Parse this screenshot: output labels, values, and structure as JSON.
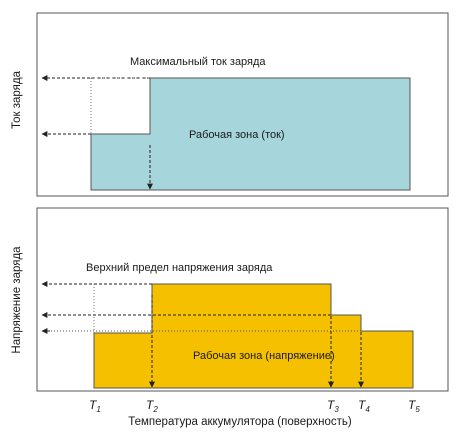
{
  "top_panel": {
    "y_axis_label": "Ток заряда",
    "max_label": "Максимальный ток заряда",
    "zone_label": "Рабочая зона (ток)",
    "zone_color": "#a6d6dc"
  },
  "bottom_panel": {
    "y_axis_label": "Напряжение заряда",
    "max_label": "Верхний предел напряжения заряда",
    "zone_label": "Рабочая зона (напряжение)",
    "zone_color": "#f5c000"
  },
  "x_axis_label": "Температура аккумулятора (поверхность)",
  "temperature_marks": [
    {
      "letter": "T",
      "index": "1"
    },
    {
      "letter": "T",
      "index": "2"
    },
    {
      "letter": "T",
      "index": "3"
    },
    {
      "letter": "T",
      "index": "4"
    },
    {
      "letter": "T",
      "index": "5"
    }
  ],
  "colors": {
    "frame": "#555555",
    "arrow": "#222222"
  }
}
